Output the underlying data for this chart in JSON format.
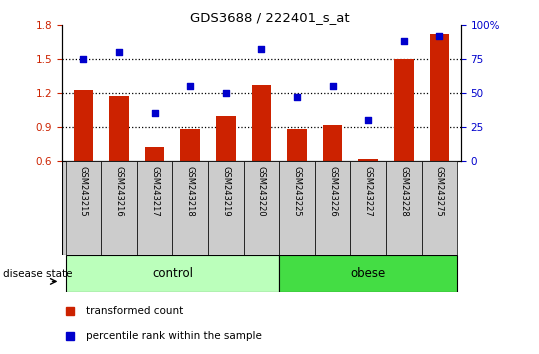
{
  "title": "GDS3688 / 222401_s_at",
  "samples": [
    "GSM243215",
    "GSM243216",
    "GSM243217",
    "GSM243218",
    "GSM243219",
    "GSM243220",
    "GSM243225",
    "GSM243226",
    "GSM243227",
    "GSM243228",
    "GSM243275"
  ],
  "bar_values": [
    1.23,
    1.17,
    0.72,
    0.88,
    1.0,
    1.27,
    0.88,
    0.92,
    0.62,
    1.5,
    1.72
  ],
  "dot_values": [
    75,
    80,
    35,
    55,
    50,
    82,
    47,
    55,
    30,
    88,
    92
  ],
  "ylim_left": [
    0.6,
    1.8
  ],
  "ylim_right": [
    0,
    100
  ],
  "yticks_left": [
    0.6,
    0.9,
    1.2,
    1.5,
    1.8
  ],
  "yticks_right": [
    0,
    25,
    50,
    75,
    100
  ],
  "ytick_labels_right": [
    "0",
    "25",
    "50",
    "75",
    "100%"
  ],
  "bar_color": "#cc2200",
  "dot_color": "#0000cc",
  "n_control": 6,
  "n_obese": 5,
  "control_color": "#bbffbb",
  "obese_color": "#44dd44",
  "label_bar": "transformed count",
  "label_dot": "percentile rank within the sample",
  "disease_state_label": "disease state",
  "control_label": "control",
  "obese_label": "obese",
  "background_color": "#ffffff",
  "tick_area_color": "#cccccc",
  "hgrid_vals": [
    0.9,
    1.2,
    1.5
  ]
}
